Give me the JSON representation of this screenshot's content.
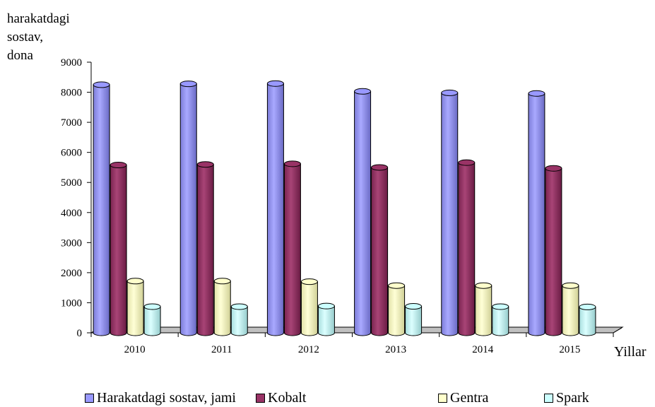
{
  "chart_data": {
    "type": "bar",
    "ylabel_lines": [
      "harakatdagi",
      "sostav,",
      "dona"
    ],
    "xlabel": "Yillar",
    "categories": [
      "2010",
      "2011",
      "2012",
      "2013",
      "2014",
      "2015"
    ],
    "ylim": [
      0,
      9000
    ],
    "yticks": [
      "0",
      "1000",
      "2000",
      "3000",
      "4000",
      "5000",
      "6000",
      "7000",
      "8000",
      "9000"
    ],
    "series": [
      {
        "name": "Harakatdagi sostav, jami",
        "color": "#9999ff",
        "values": [
          8250,
          8280,
          8290,
          8030,
          7980,
          7960
        ]
      },
      {
        "name": "Kobalt",
        "color": "#993366",
        "values": [
          5580,
          5600,
          5620,
          5500,
          5660,
          5470
        ]
      },
      {
        "name": "Gentra",
        "color": "#ffffcc",
        "values": [
          1720,
          1720,
          1700,
          1570,
          1570,
          1570
        ]
      },
      {
        "name": "Spark",
        "color": "#ccffff",
        "values": [
          870,
          870,
          890,
          880,
          870,
          860
        ]
      }
    ],
    "grid": false,
    "legend_position": "bottom"
  }
}
